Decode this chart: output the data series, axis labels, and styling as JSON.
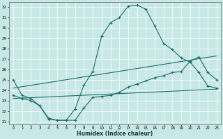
{
  "xlabel": "Humidex (Indice chaleur)",
  "xlim": [
    -0.5,
    23.5
  ],
  "ylim": [
    20.7,
    32.5
  ],
  "yticks": [
    21,
    22,
    23,
    24,
    25,
    26,
    27,
    28,
    29,
    30,
    31,
    32
  ],
  "xticks": [
    0,
    1,
    2,
    3,
    4,
    5,
    6,
    7,
    8,
    9,
    10,
    11,
    12,
    13,
    14,
    15,
    16,
    17,
    18,
    19,
    20,
    21,
    22,
    23
  ],
  "bg_color": "#c8e8e8",
  "line_color": "#1a6e6a",
  "line1_x": [
    0,
    1,
    2,
    3,
    4,
    5,
    6,
    7,
    8,
    9,
    10,
    11,
    12,
    13,
    14,
    15,
    16,
    17,
    18,
    19,
    20,
    21,
    22,
    23
  ],
  "line1_y": [
    25.0,
    23.5,
    23.2,
    22.5,
    21.2,
    21.1,
    21.1,
    22.2,
    24.5,
    25.8,
    29.2,
    30.5,
    31.0,
    32.1,
    32.2,
    31.8,
    30.2,
    28.5,
    27.9,
    27.1,
    26.7,
    25.7,
    24.4,
    24.2
  ],
  "line2_x": [
    0,
    1,
    2,
    3,
    4,
    5,
    6,
    7,
    8,
    9,
    10,
    11,
    12,
    13,
    14,
    15,
    16,
    17,
    18,
    19,
    20,
    21,
    22,
    23
  ],
  "line2_y": [
    23.5,
    23.2,
    23.0,
    22.5,
    21.3,
    21.1,
    21.1,
    21.1,
    22.3,
    23.3,
    23.4,
    23.5,
    23.8,
    24.3,
    24.6,
    24.9,
    25.2,
    25.4,
    25.7,
    25.8,
    26.8,
    27.2,
    25.7,
    25.0
  ],
  "line3_x": [
    0,
    23
  ],
  "line3_y": [
    23.2,
    24.1
  ],
  "line4_x": [
    0,
    23
  ],
  "line4_y": [
    24.2,
    27.3
  ]
}
